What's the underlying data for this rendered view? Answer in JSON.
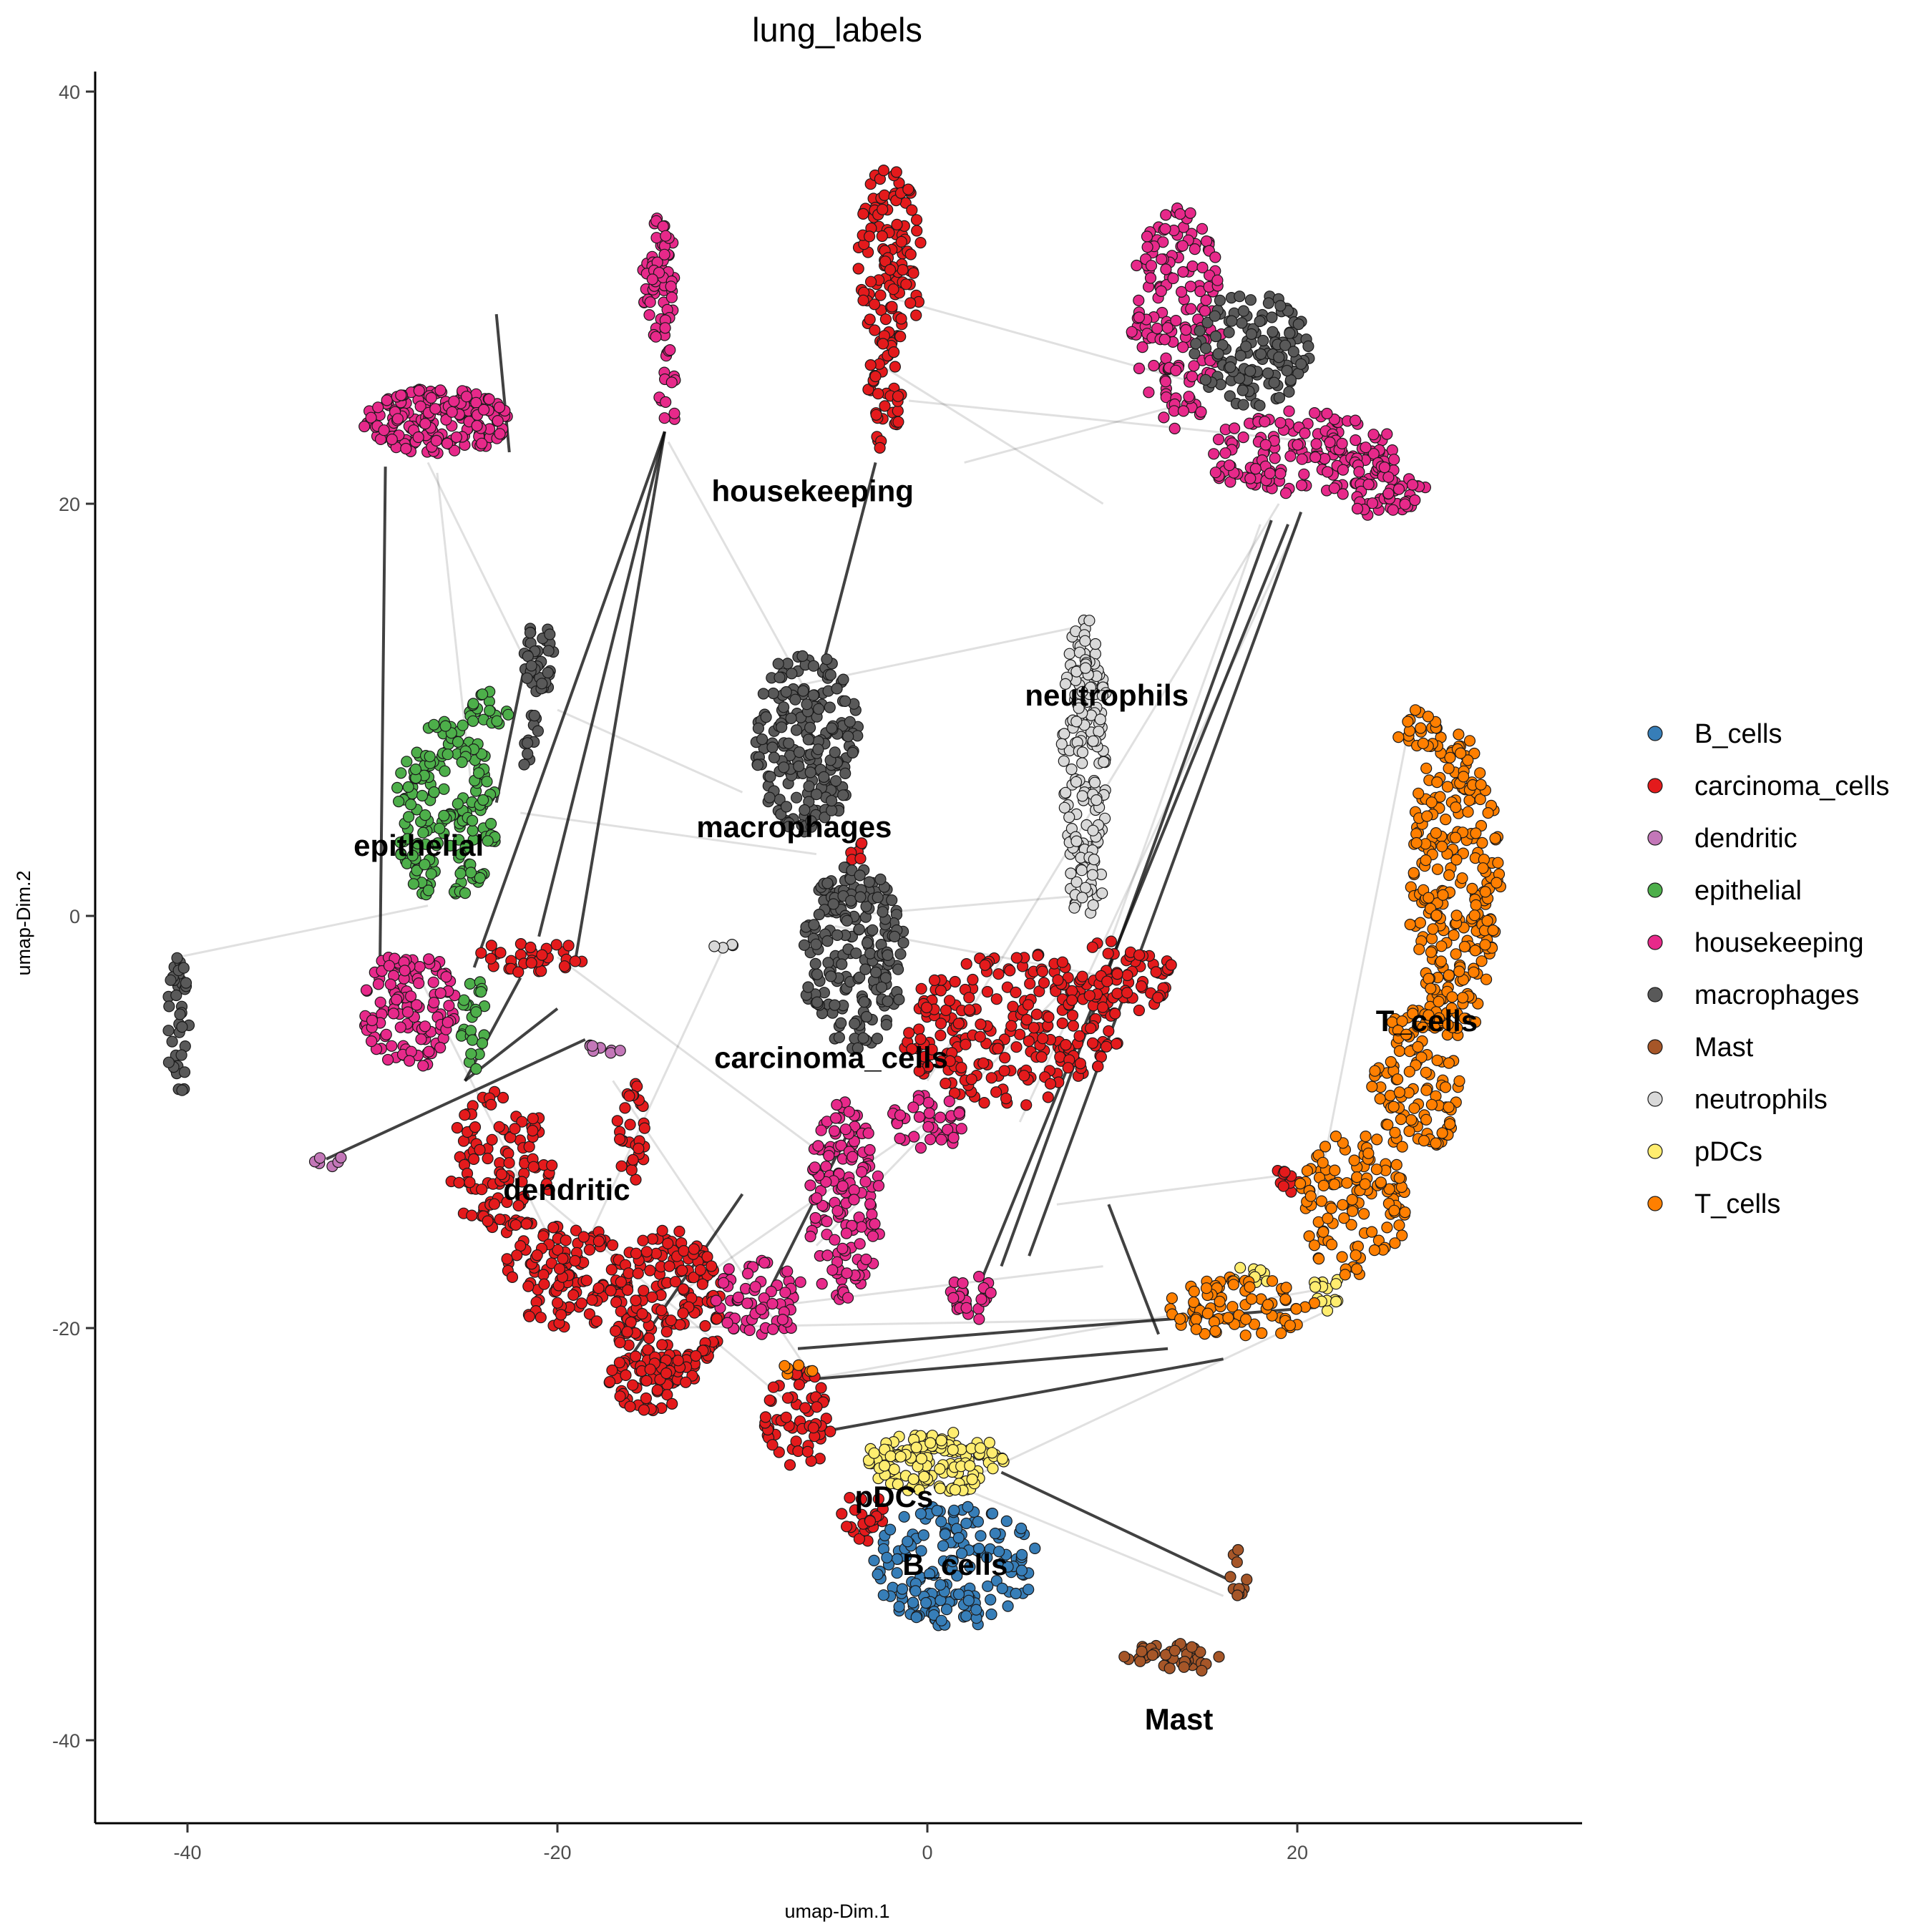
{
  "chart_data": {
    "type": "scatter",
    "title": "lung_labels",
    "xlabel": "umap-Dim.1",
    "ylabel": "umap-Dim.2",
    "xlim": [
      -45,
      35
    ],
    "ylim": [
      -45,
      41
    ],
    "xticks": [
      -40,
      -20,
      0,
      20
    ],
    "yticks": [
      -40,
      -20,
      0,
      20,
      40
    ],
    "grid": false,
    "legend_position": "right",
    "series": [
      {
        "name": "B_cells",
        "color": "#377EB8",
        "regions": [
          {
            "cx": 1.5,
            "cy": -31.5,
            "rx": 4.5,
            "ry": 3.0,
            "n": 170
          }
        ]
      },
      {
        "name": "carcinoma_cells",
        "color": "#E41A1C",
        "regions": [
          {
            "cx": -2.0,
            "cy": 32.0,
            "rx": 1.8,
            "ry": 4.5,
            "n": 110
          },
          {
            "cx": -2.3,
            "cy": 25.5,
            "rx": 0.9,
            "ry": 3.0,
            "n": 40
          },
          {
            "cx": 4.5,
            "cy": -5.5,
            "rx": 6.0,
            "ry": 3.8,
            "n": 240
          },
          {
            "cx": 10.0,
            "cy": -3.0,
            "rx": 3.5,
            "ry": 1.8,
            "n": 70
          },
          {
            "cx": -23.0,
            "cy": -12.0,
            "rx": 3.0,
            "ry": 3.5,
            "n": 110
          },
          {
            "cx": -19.5,
            "cy": -17.5,
            "rx": 3.5,
            "ry": 2.5,
            "n": 120
          },
          {
            "cx": -14.0,
            "cy": -19.0,
            "rx": 3.0,
            "ry": 4.0,
            "n": 170
          },
          {
            "cx": -15.0,
            "cy": -22.5,
            "rx": 2.2,
            "ry": 1.5,
            "n": 60
          },
          {
            "cx": -16.0,
            "cy": -10.5,
            "rx": 0.8,
            "ry": 2.5,
            "n": 30
          },
          {
            "cx": -21.5,
            "cy": -2.0,
            "rx": 3.0,
            "ry": 0.8,
            "n": 35
          },
          {
            "cx": -7.0,
            "cy": -24.5,
            "rx": 1.8,
            "ry": 2.5,
            "n": 60
          },
          {
            "cx": -3.5,
            "cy": -29.0,
            "rx": 1.2,
            "ry": 1.5,
            "n": 25
          },
          {
            "cx": 19.5,
            "cy": -12.8,
            "rx": 0.8,
            "ry": 0.8,
            "n": 10
          },
          {
            "cx": -4.0,
            "cy": 3.2,
            "rx": 0.6,
            "ry": 0.6,
            "n": 6
          }
        ]
      },
      {
        "name": "dendritic",
        "color": "#C377B8",
        "regions": [
          {
            "cx": -32.5,
            "cy": -11.8,
            "rx": 0.9,
            "ry": 0.4,
            "n": 6
          },
          {
            "cx": -17.5,
            "cy": -6.3,
            "rx": 1.2,
            "ry": 0.4,
            "n": 8
          }
        ]
      },
      {
        "name": "epithelial",
        "color": "#4DAF4A",
        "regions": [
          {
            "cx": -26.0,
            "cy": 5.0,
            "rx": 2.8,
            "ry": 4.5,
            "n": 180
          },
          {
            "cx": -24.5,
            "cy": -5.5,
            "rx": 0.8,
            "ry": 2.5,
            "n": 25
          },
          {
            "cx": -23.5,
            "cy": 10.0,
            "rx": 1.3,
            "ry": 1.0,
            "n": 20
          }
        ]
      },
      {
        "name": "housekeeping",
        "color": "#E7298A",
        "regions": [
          {
            "cx": -26.5,
            "cy": 24.0,
            "rx": 4.0,
            "ry": 1.6,
            "n": 180
          },
          {
            "cx": -14.5,
            "cy": 31.0,
            "rx": 0.9,
            "ry": 3.0,
            "n": 60
          },
          {
            "cx": -14.0,
            "cy": 25.5,
            "rx": 0.5,
            "ry": 2.0,
            "n": 15
          },
          {
            "cx": 13.5,
            "cy": 29.0,
            "rx": 2.5,
            "ry": 5.5,
            "n": 160
          },
          {
            "cx": 20.0,
            "cy": 22.5,
            "rx": 5.5,
            "ry": 2.0,
            "n": 150
          },
          {
            "cx": 24.5,
            "cy": 20.8,
            "rx": 2.5,
            "ry": 1.5,
            "n": 60
          },
          {
            "cx": -4.5,
            "cy": -14.0,
            "rx": 2.0,
            "ry": 5.0,
            "n": 140
          },
          {
            "cx": -9.0,
            "cy": -18.5,
            "rx": 2.5,
            "ry": 2.0,
            "n": 60
          },
          {
            "cx": 0.0,
            "cy": -10.0,
            "rx": 2.0,
            "ry": 1.5,
            "n": 40
          },
          {
            "cx": -28.0,
            "cy": -4.5,
            "rx": 2.5,
            "ry": 3.0,
            "n": 120
          },
          {
            "cx": 2.5,
            "cy": -18.5,
            "rx": 1.3,
            "ry": 1.2,
            "n": 25
          }
        ]
      },
      {
        "name": "macrophages",
        "color": "#595959",
        "regions": [
          {
            "cx": -6.5,
            "cy": 8.5,
            "rx": 2.8,
            "ry": 4.5,
            "n": 200
          },
          {
            "cx": -4.0,
            "cy": -2.0,
            "rx": 2.8,
            "ry": 4.5,
            "n": 200
          },
          {
            "cx": 17.5,
            "cy": 27.5,
            "rx": 3.2,
            "ry": 2.8,
            "n": 130
          },
          {
            "cx": -40.5,
            "cy": -5.5,
            "rx": 0.6,
            "ry": 3.5,
            "n": 40
          },
          {
            "cx": -21.0,
            "cy": 12.5,
            "rx": 0.8,
            "ry": 1.8,
            "n": 40
          },
          {
            "cx": -21.5,
            "cy": 8.5,
            "rx": 0.5,
            "ry": 1.5,
            "n": 12
          }
        ]
      },
      {
        "name": "Mast",
        "color": "#A65628",
        "regions": [
          {
            "cx": 13.5,
            "cy": -36.0,
            "rx": 3.0,
            "ry": 0.7,
            "n": 40
          },
          {
            "cx": 16.8,
            "cy": -32.5,
            "rx": 0.5,
            "ry": 1.8,
            "n": 12
          }
        ]
      },
      {
        "name": "neutrophils",
        "color": "#D9D9D9",
        "regions": [
          {
            "cx": 8.5,
            "cy": 8.0,
            "rx": 1.3,
            "ry": 6.5,
            "n": 160
          },
          {
            "cx": 8.5,
            "cy": 1.5,
            "rx": 1.0,
            "ry": 1.5,
            "n": 20
          },
          {
            "cx": -11.0,
            "cy": -1.5,
            "rx": 0.6,
            "ry": 0.3,
            "n": 4
          }
        ]
      },
      {
        "name": "pDCs",
        "color": "#FFED6F",
        "regions": [
          {
            "cx": 0.5,
            "cy": -26.5,
            "rx": 4.0,
            "ry": 1.5,
            "n": 140
          },
          {
            "cx": 21.5,
            "cy": -18.0,
            "rx": 0.8,
            "ry": 1.3,
            "n": 15
          },
          {
            "cx": 17.5,
            "cy": -17.5,
            "rx": 1.2,
            "ry": 0.5,
            "n": 10
          }
        ]
      },
      {
        "name": "T_cells",
        "color": "#FF7F00",
        "regions": [
          {
            "cx": 28.5,
            "cy": 1.5,
            "rx": 2.5,
            "ry": 7.5,
            "n": 260
          },
          {
            "cx": 26.5,
            "cy": -8.0,
            "rx": 2.5,
            "ry": 3.5,
            "n": 110
          },
          {
            "cx": 23.0,
            "cy": -14.0,
            "rx": 3.0,
            "ry": 3.5,
            "n": 120
          },
          {
            "cx": 17.0,
            "cy": -19.0,
            "rx": 4.0,
            "ry": 1.5,
            "n": 80
          },
          {
            "cx": 26.5,
            "cy": 9.0,
            "rx": 1.2,
            "ry": 1.0,
            "n": 20
          },
          {
            "cx": -7.0,
            "cy": -22.0,
            "rx": 0.8,
            "ry": 0.5,
            "n": 6
          }
        ]
      }
    ],
    "cluster_labels": [
      {
        "text": "housekeeping",
        "x": -6.2,
        "y": 20.6
      },
      {
        "text": "neutrophils",
        "x": 9.7,
        "y": 10.7
      },
      {
        "text": "macrophages",
        "x": -7.2,
        "y": 4.3
      },
      {
        "text": "epithelial",
        "x": -27.5,
        "y": 3.4
      },
      {
        "text": "T_cells",
        "x": 27.0,
        "y": -5.1
      },
      {
        "text": "carcinoma_cells",
        "x": -5.2,
        "y": -6.9
      },
      {
        "text": "dendritic",
        "x": -19.5,
        "y": -13.3
      },
      {
        "text": "pDCs",
        "x": -1.8,
        "y": -28.2
      },
      {
        "text": "B_cells",
        "x": 1.5,
        "y": -31.5
      },
      {
        "text": "Mast",
        "x": 13.6,
        "y": -39.0
      }
    ],
    "edges": [
      [
        -29.3,
        21.8,
        -29.6,
        -3.0
      ],
      [
        -23.3,
        29.2,
        -22.6,
        22.5
      ],
      [
        -14.2,
        23.5,
        -24.5,
        -2.5
      ],
      [
        -14.2,
        23.5,
        -21.0,
        -1.0
      ],
      [
        -14.2,
        23.5,
        -19.0,
        -2.0
      ],
      [
        -2.8,
        22.0,
        -5.7,
        12.0
      ],
      [
        18.6,
        19.2,
        4.0,
        -17.0
      ],
      [
        20.2,
        19.6,
        5.5,
        -16.5
      ],
      [
        19.5,
        19.0,
        3.0,
        -17.5
      ],
      [
        -32.5,
        -11.8,
        -18.5,
        -6.0
      ],
      [
        9.8,
        -14.0,
        12.5,
        -20.3
      ],
      [
        16.5,
        -32.3,
        4.0,
        -27.0
      ],
      [
        -7.0,
        -21.0,
        21.0,
        -19.0
      ],
      [
        -6.5,
        -22.5,
        13.0,
        -21.0
      ],
      [
        -5.5,
        -25.0,
        16.0,
        -21.5
      ],
      [
        -21.8,
        12.0,
        -23.3,
        5.5
      ],
      [
        -9.0,
        -19.0,
        -4.0,
        -10.0
      ],
      [
        -16.5,
        -22.0,
        -10.0,
        -13.5
      ],
      [
        -25.0,
        -8.0,
        -20.0,
        -4.5
      ],
      [
        -22.0,
        -3.0,
        -25.0,
        -8.0
      ]
    ],
    "faint_edges": [
      [
        -40.5,
        -2.0,
        -27.0,
        0.5
      ],
      [
        -27.0,
        22.0,
        -21.8,
        12.5
      ],
      [
        -26.5,
        21.5,
        -24.5,
        5.0
      ],
      [
        -3.0,
        27.0,
        9.5,
        20.0
      ],
      [
        -1.0,
        25.0,
        21.0,
        23.0
      ],
      [
        2.0,
        22.0,
        14.5,
        25.0
      ],
      [
        -14.0,
        23.0,
        -6.0,
        10.0
      ],
      [
        -5.0,
        -0.5,
        10.0,
        -3.0
      ],
      [
        -4.5,
        0.0,
        8.5,
        1.0
      ],
      [
        -9.0,
        -19.0,
        9.5,
        -17.0
      ],
      [
        -6.5,
        -22.5,
        22.0,
        -18.0
      ],
      [
        -19.0,
        -17.0,
        -11.0,
        -1.5
      ],
      [
        -20.0,
        10.0,
        -10.0,
        6.0
      ],
      [
        -22.0,
        5.0,
        -6.0,
        3.0
      ],
      [
        -14.5,
        -19.0,
        0.0,
        -10.0
      ],
      [
        3.0,
        -27.0,
        22.0,
        -19.0
      ],
      [
        2.5,
        -28.0,
        16.0,
        -33.0
      ],
      [
        -6.0,
        -16.0,
        8.0,
        -3.0
      ],
      [
        0.0,
        -8.0,
        19.0,
        20.0
      ],
      [
        21.0,
        -14.0,
        26.0,
        9.0
      ],
      [
        7.0,
        -14.0,
        20.0,
        -12.5
      ],
      [
        -20.0,
        -2.0,
        -5.0,
        -12.0
      ],
      [
        -8.0,
        11.0,
        8.0,
        14.0
      ],
      [
        10.0,
        -1.0,
        18.0,
        19.0
      ],
      [
        -23.0,
        -12.0,
        -7.0,
        -24.0
      ],
      [
        -17.0,
        -8.0,
        -6.5,
        -22.0
      ],
      [
        -28.0,
        -2.0,
        -18.0,
        -20.0
      ],
      [
        -2.0,
        30.0,
        14.0,
        26.0
      ],
      [
        5.0,
        -10.0,
        20.0,
        19.0
      ],
      [
        -15.0,
        -20.0,
        17.0,
        -19.5
      ]
    ]
  }
}
